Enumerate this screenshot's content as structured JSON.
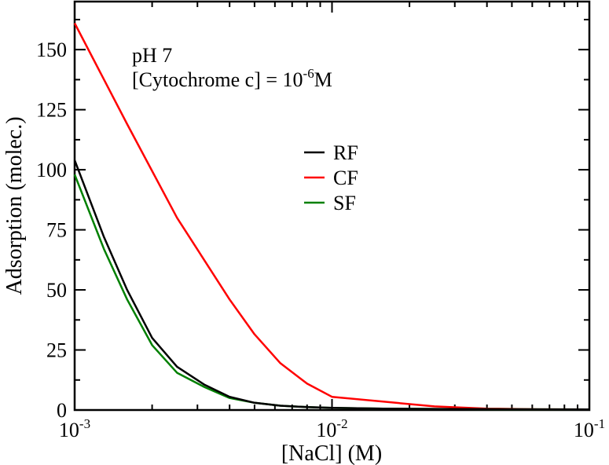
{
  "chart_data": {
    "type": "line",
    "x_scale": "log",
    "xlim": [
      0.001,
      0.1
    ],
    "ylim": [
      0,
      170
    ],
    "xlabel": "[NaCl] (M)",
    "ylabel": "Adsorption (molec.)",
    "grid": false,
    "legend_position": "upper-middle",
    "annotations": {
      "line1": "pH 7",
      "line2_prefix": "[Cytochrome c] = 10",
      "line2_exponent": "-6",
      "line2_suffix": "M"
    },
    "x_tick_labels": [
      {
        "value": 0.001,
        "base": "10",
        "exp": "-3"
      },
      {
        "value": 0.01,
        "base": "10",
        "exp": "-2"
      },
      {
        "value": 0.1,
        "base": "10",
        "exp": "-1"
      }
    ],
    "y_ticks": [
      0,
      25,
      50,
      75,
      100,
      125,
      150
    ],
    "y_tick_labels": [
      "0",
      "25",
      "50",
      "75",
      "100",
      "125",
      "150"
    ],
    "series": [
      {
        "name": "RF",
        "color": "#000000",
        "x": [
          0.001,
          0.0013,
          0.0016,
          0.002,
          0.0025,
          0.0032,
          0.004,
          0.005,
          0.0063,
          0.008,
          0.01,
          0.0158,
          0.025,
          0.0398,
          0.063,
          0.1
        ],
        "y": [
          104,
          72,
          50,
          30,
          18,
          10.5,
          5.5,
          3,
          1.8,
          1.2,
          0.9,
          0.6,
          0.45,
          0.35,
          0.3,
          0.25
        ]
      },
      {
        "name": "CF",
        "color": "#ff0000",
        "x": [
          0.001,
          0.0016,
          0.0025,
          0.004,
          0.005,
          0.0063,
          0.008,
          0.01,
          0.0158,
          0.025,
          0.0398,
          0.063,
          0.1
        ],
        "y": [
          161,
          119,
          80,
          46,
          31.5,
          19.5,
          11,
          5.5,
          3.5,
          1.5,
          0.6,
          0.3,
          0.25
        ]
      },
      {
        "name": "SF",
        "color": "#008000",
        "x": [
          0.001,
          0.0013,
          0.0016,
          0.002,
          0.0025,
          0.0032,
          0.004,
          0.005,
          0.0063,
          0.008,
          0.01,
          0.0158,
          0.025,
          0.0398,
          0.063,
          0.1
        ],
        "y": [
          98,
          67,
          46,
          27,
          15.5,
          9.5,
          5,
          3,
          1.8,
          1.2,
          0.9,
          0.6,
          0.45,
          0.35,
          0.3,
          0.25
        ]
      }
    ]
  }
}
